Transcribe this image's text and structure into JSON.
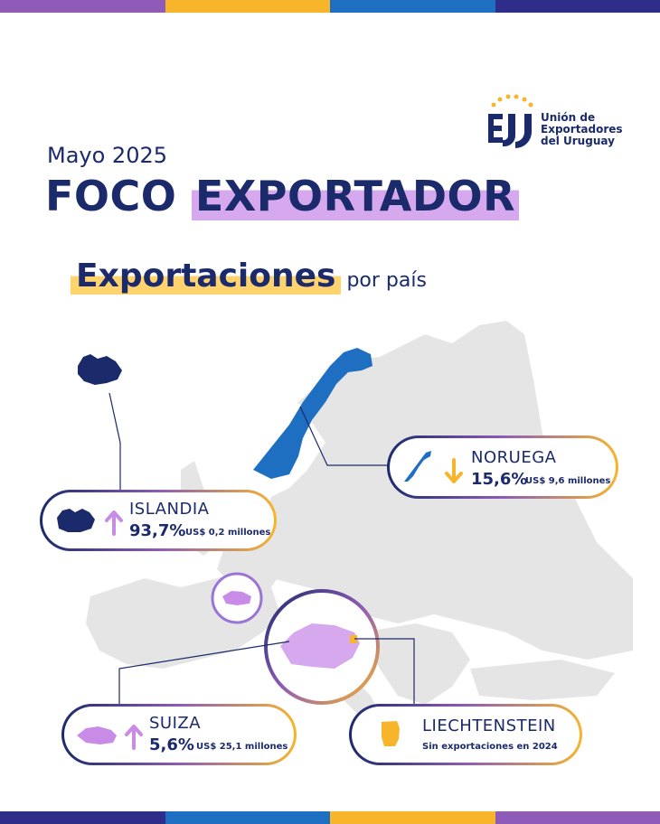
{
  "colors": {
    "navy": "#1b2a6b",
    "blue": "#1e6fc2",
    "purple": "#c98ce6",
    "yellow": "#f7b52c",
    "map_grey": "#e5e5e5"
  },
  "stripes": [
    "#8e5bb8",
    "#f7b52c",
    "#1e6fc2",
    "#2e2e8a"
  ],
  "logo": {
    "line1": "Unión de",
    "line2": "Exportadores",
    "line3": "del Uruguay",
    "icon": "uex-logo-icon"
  },
  "header": {
    "month": "Mayo 2025",
    "title_a": "FOCO",
    "title_b": "EXPORTADOR",
    "subtitle": "Exportaciones",
    "subtitle_small": "por país"
  },
  "countries": {
    "noruega": {
      "name": "NORUEGA",
      "trend": "down",
      "pct": "15,6%",
      "amount": "US$ 9,6 millones"
    },
    "islandia": {
      "name": "ISLANDIA",
      "trend": "up",
      "pct": "93,7%",
      "amount": "US$ 0,2 millones"
    },
    "suiza": {
      "name": "SUIZA",
      "trend": "up",
      "pct": "5,6%",
      "amount": "US$ 25,1 millones"
    },
    "liechtenstein": {
      "name": "LIECHTENSTEIN",
      "note": "Sin exportaciones en 2024"
    }
  }
}
